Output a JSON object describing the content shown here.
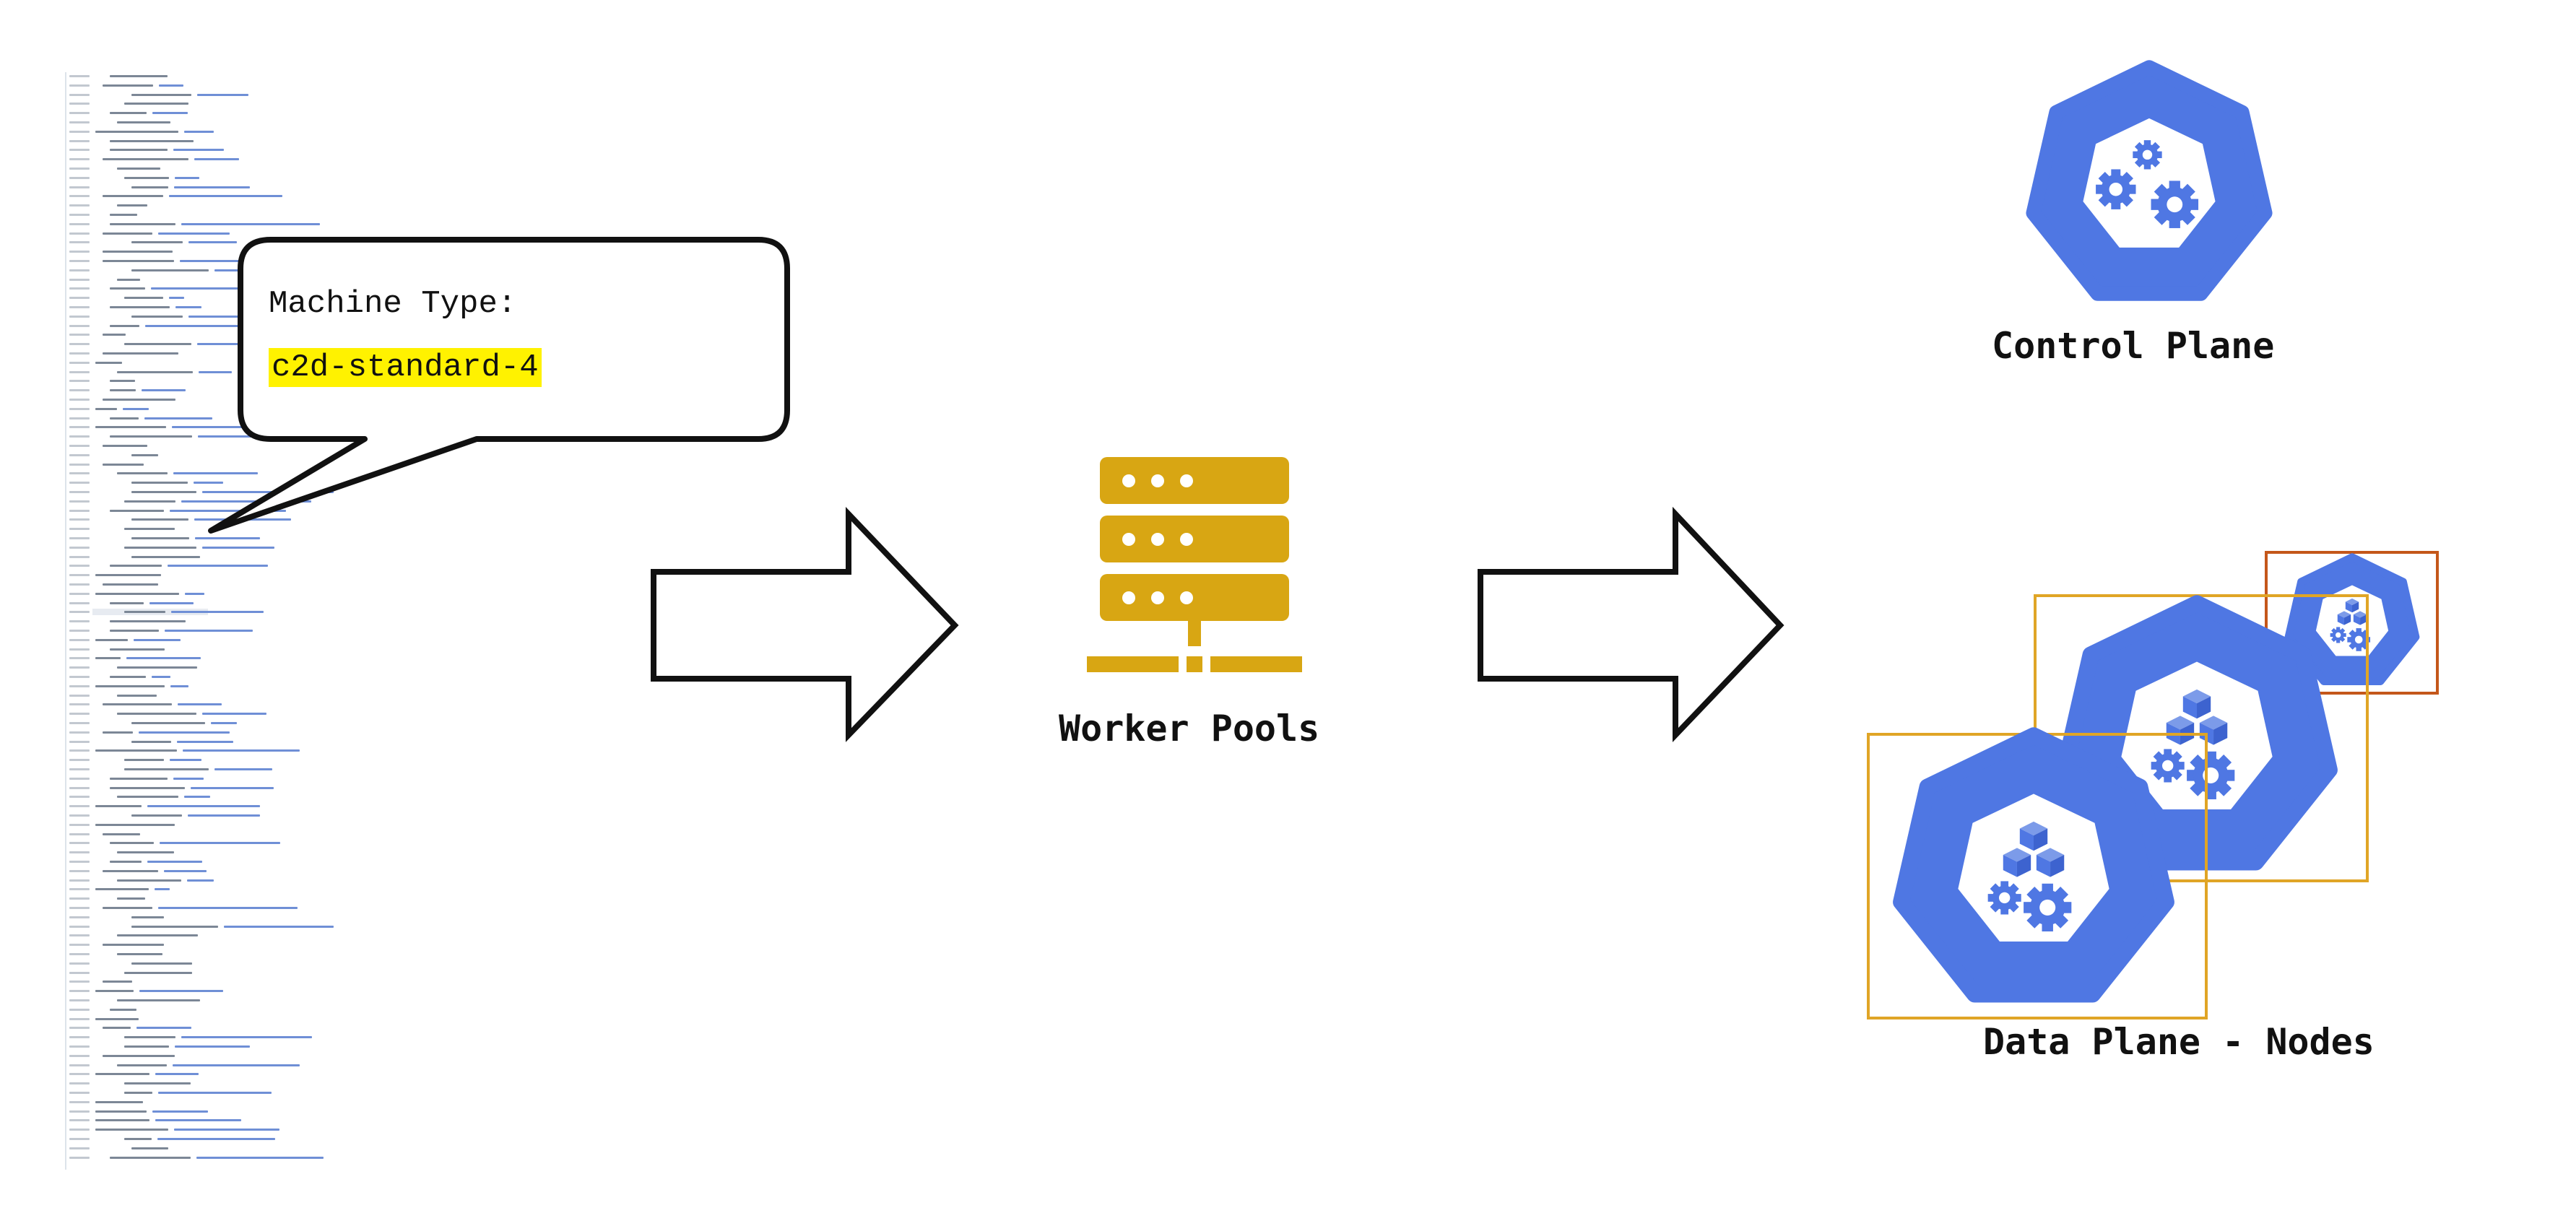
{
  "callout": {
    "title": "Machine Type:",
    "value": "c2d-standard-4"
  },
  "worker_pools": {
    "label": "Worker Pools",
    "icon": "server-stack-icon"
  },
  "control_plane": {
    "label": "Control Plane",
    "icon": "kubernetes-control-plane-icon"
  },
  "data_plane": {
    "label": "Data Plane - Nodes",
    "icon": "kubernetes-node-icon"
  },
  "colors": {
    "k8s_blue": "#4f77e3",
    "server_gold": "#d8a613",
    "node_frame_gold": "#e0a526",
    "node_frame_rust": "#c4571a",
    "highlight": "#fff200"
  }
}
